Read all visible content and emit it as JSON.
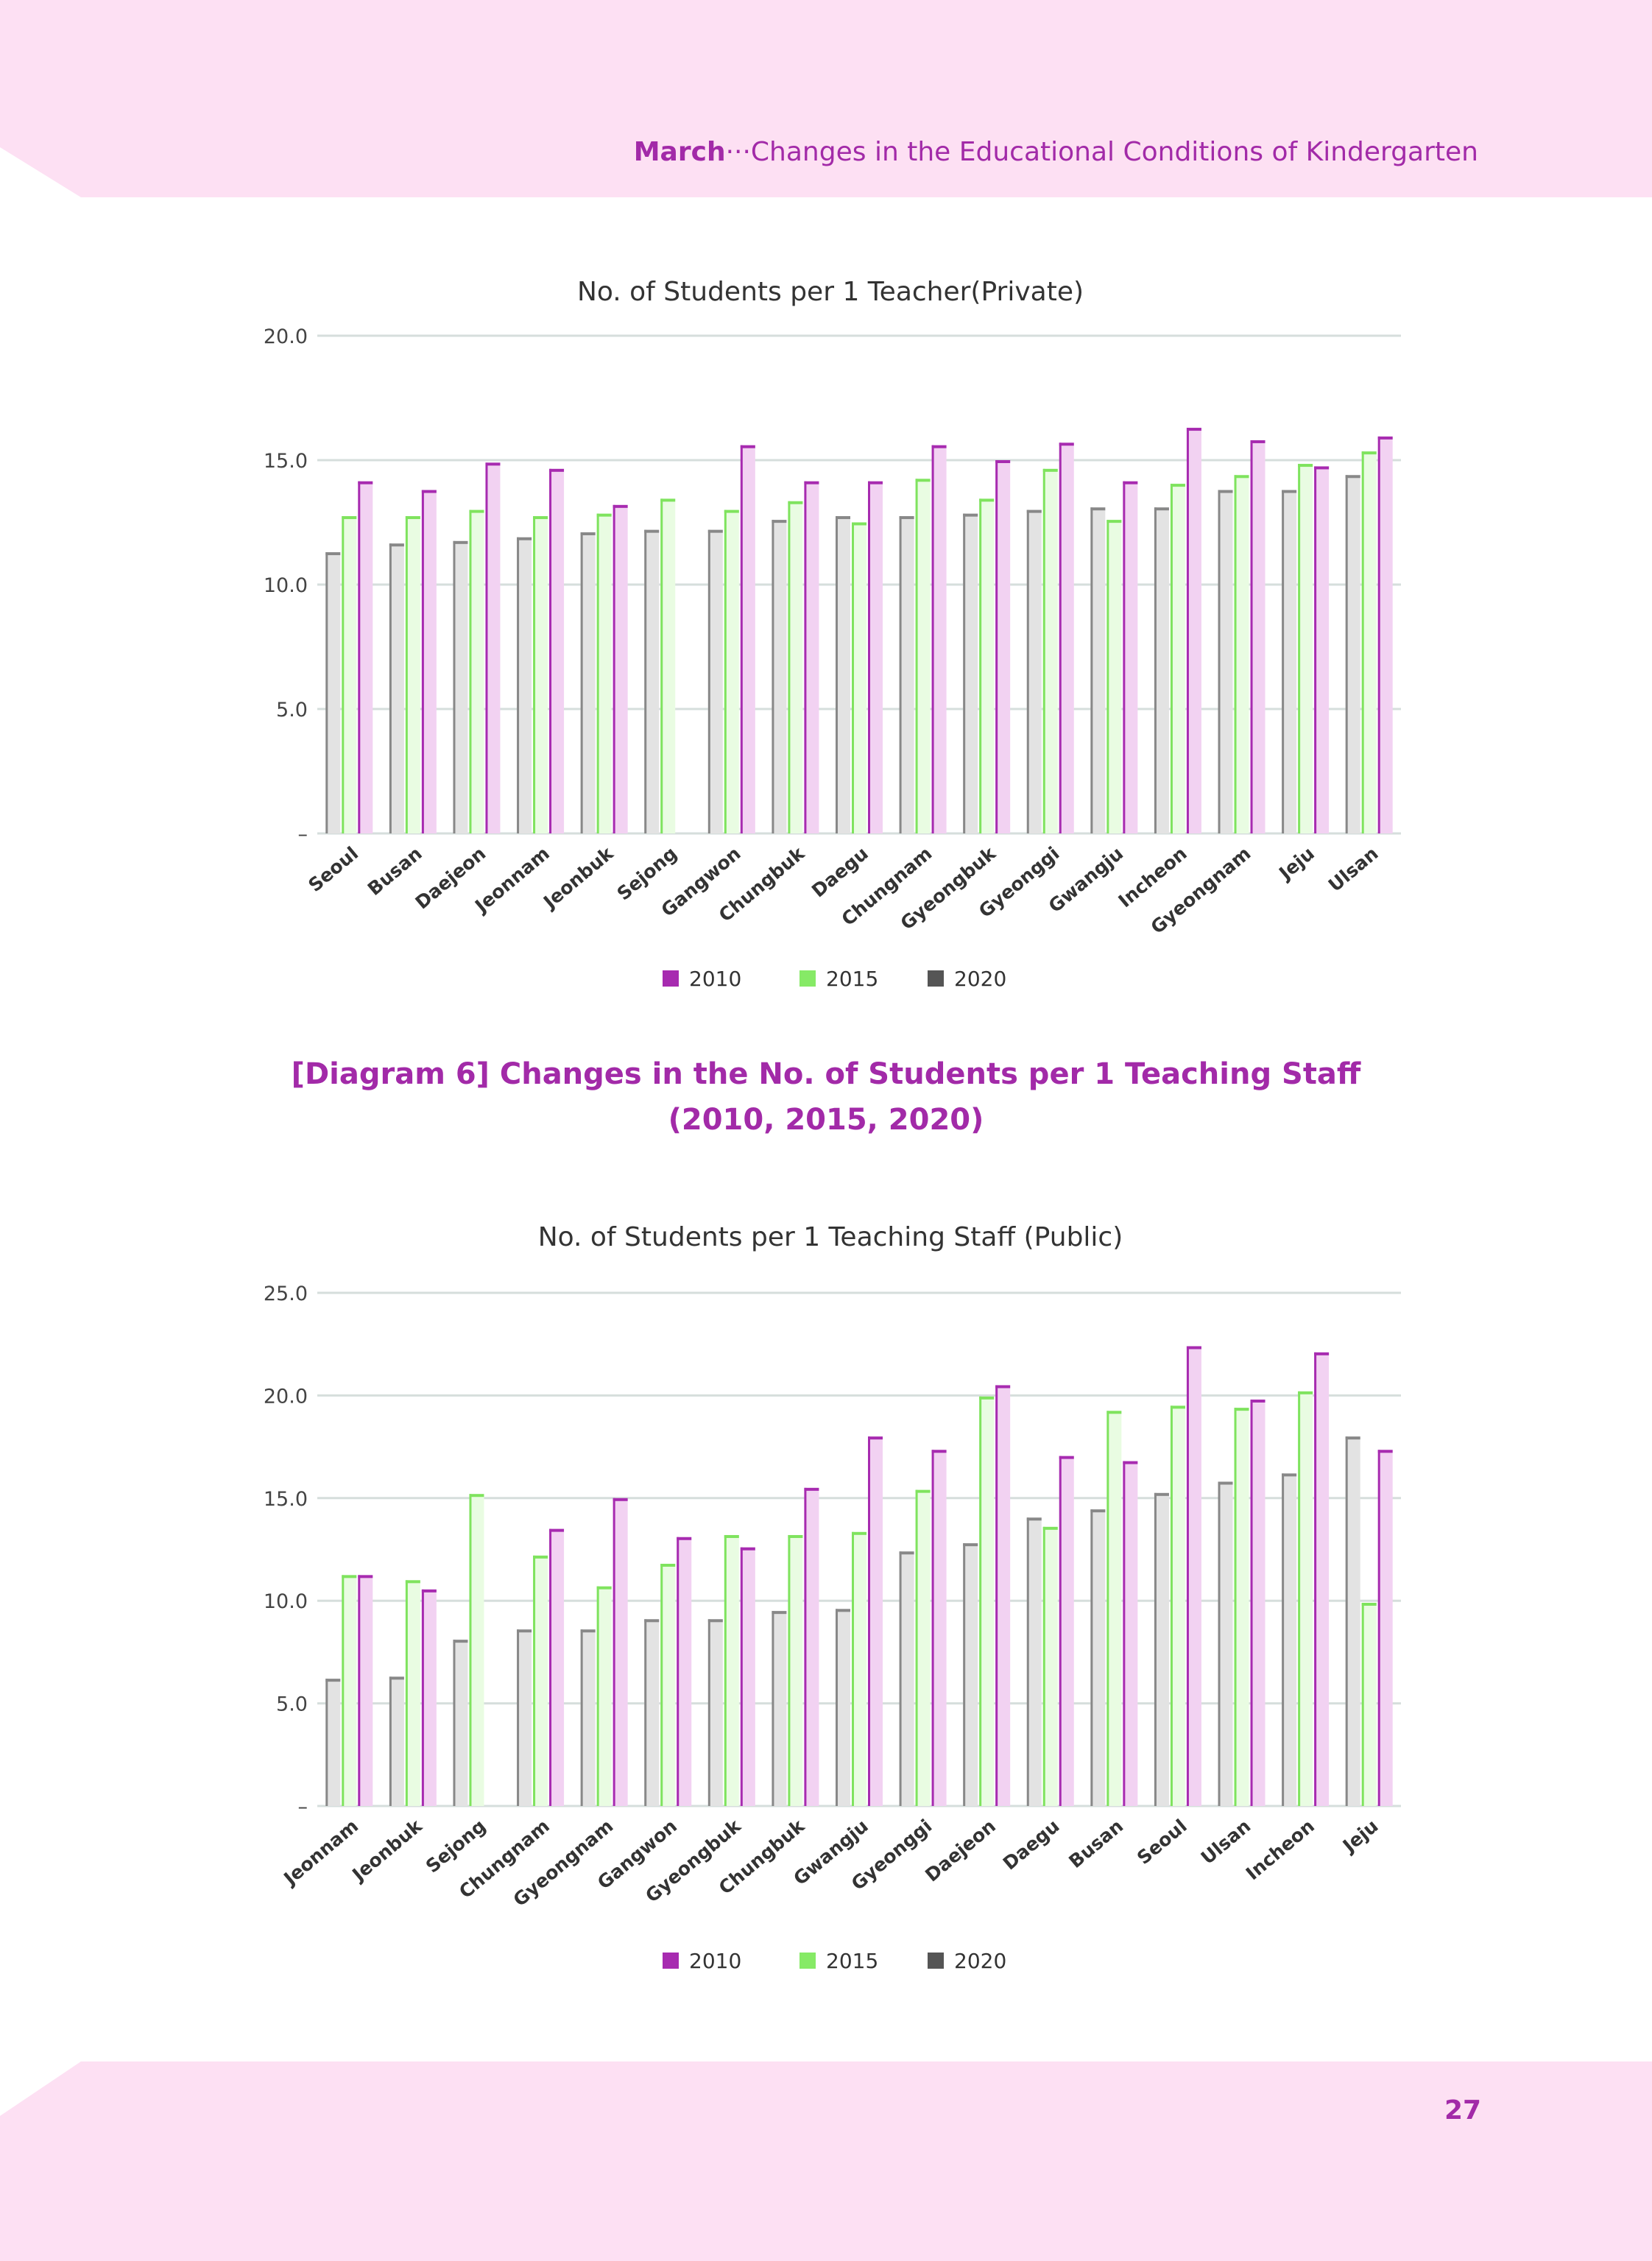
{
  "header": {
    "chapter": "March",
    "separator": "···",
    "title": "Changes in the Educational Conditions of Kindergarten"
  },
  "diagram_heading": {
    "line1": "[Diagram 6] Changes in the No. of Students per 1 Teaching Staff",
    "line2": "(2010, 2015, 2020)"
  },
  "page_number": "27",
  "colors": {
    "2010": "#a72bb0",
    "2015": "#86ea66",
    "2020": "#555555",
    "accent": "#a22aa8"
  },
  "chart_data": [
    {
      "type": "bar",
      "title": "No. of Students per 1 Teacher(Private)",
      "xlabel": "",
      "ylabel": "",
      "ylim": [
        0,
        20
      ],
      "yticks": [
        0,
        5,
        10,
        15,
        20
      ],
      "ytick_labels": [
        "–",
        "5.0",
        "10.0",
        "15.0",
        "20.0"
      ],
      "grid": true,
      "legend_position": "bottom-center",
      "categories": [
        "Seoul",
        "Busan",
        "Daejeon",
        "Jeonnam",
        "Jeonbuk",
        "Sejong",
        "Gangwon",
        "Chungbuk",
        "Daegu",
        "Chungnam",
        "Gyeongbuk",
        "Gyeonggi",
        "Gwangju",
        "Incheon",
        "Gyeongnam",
        "Jeju",
        "Ulsan"
      ],
      "series": [
        {
          "name": "2020",
          "values": [
            11.3,
            11.65,
            11.75,
            11.9,
            12.1,
            12.2,
            12.2,
            12.6,
            12.75,
            12.75,
            12.85,
            13.0,
            13.1,
            13.1,
            13.8,
            13.8,
            14.4
          ]
        },
        {
          "name": "2015",
          "values": [
            12.75,
            12.75,
            13.0,
            12.75,
            12.85,
            13.45,
            13.0,
            13.35,
            12.5,
            14.25,
            13.45,
            14.65,
            12.6,
            14.05,
            14.4,
            14.85,
            15.35
          ]
        },
        {
          "name": "2010",
          "values": [
            14.15,
            13.8,
            14.9,
            14.65,
            13.2,
            null,
            15.6,
            14.15,
            14.15,
            15.6,
            15.0,
            15.7,
            14.15,
            16.3,
            15.8,
            14.75,
            15.95
          ]
        }
      ],
      "legend": [
        "2010",
        "2015",
        "2020"
      ]
    },
    {
      "type": "bar",
      "title": "No. of Students per 1 Teaching Staff (Public)",
      "xlabel": "",
      "ylabel": "",
      "ylim": [
        0,
        25
      ],
      "yticks": [
        0,
        5,
        10,
        15,
        20,
        25
      ],
      "ytick_labels": [
        "–",
        "5.0",
        "10.0",
        "15.0",
        "20.0",
        "25.0"
      ],
      "grid": true,
      "legend_position": "bottom-center",
      "categories": [
        "Jeonnam",
        "Jeonbuk",
        "Sejong",
        "Chungnam",
        "Gyeongnam",
        "Gangwon",
        "Gyeongbuk",
        "Chungbuk",
        "Gwangju",
        "Gyeonggi",
        "Daejeon",
        "Daegu",
        "Busan",
        "Seoul",
        "Ulsan",
        "Incheon",
        "Jeju"
      ],
      "series": [
        {
          "name": "2020",
          "values": [
            6.2,
            6.3,
            8.1,
            8.6,
            8.6,
            9.1,
            9.1,
            9.5,
            9.6,
            12.4,
            12.8,
            14.05,
            14.45,
            15.25,
            15.8,
            16.2,
            18.0
          ]
        },
        {
          "name": "2015",
          "values": [
            11.25,
            11.0,
            15.2,
            12.2,
            10.7,
            11.8,
            13.2,
            13.2,
            13.35,
            15.4,
            19.95,
            13.6,
            19.25,
            19.5,
            19.4,
            20.2,
            9.9
          ]
        },
        {
          "name": "2010",
          "values": [
            11.25,
            10.55,
            null,
            13.5,
            15.0,
            13.1,
            12.6,
            15.5,
            18.0,
            17.35,
            20.5,
            17.05,
            16.8,
            22.4,
            19.8,
            22.1,
            17.35
          ]
        }
      ],
      "legend": [
        "2010",
        "2015",
        "2020"
      ]
    }
  ]
}
